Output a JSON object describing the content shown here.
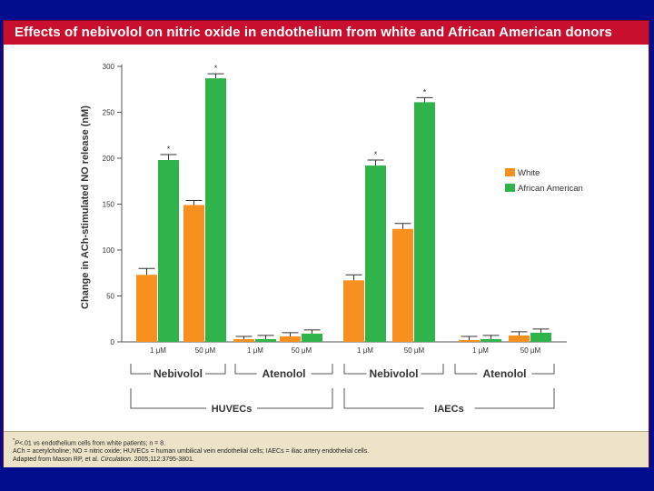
{
  "slide": {
    "title": "Effects of nebivolol on nitric oxide in endothelium from white and African American donors"
  },
  "colors": {
    "background": "#000d8c",
    "title_bar": "#c8102e",
    "white_series": "#f7901e",
    "african_american_series": "#2fb34a",
    "footer": "#ece3c8"
  },
  "chart_data": {
    "type": "bar",
    "title": "",
    "ylabel": "Change in ACh-stimulated NO release (nM)",
    "xlabel": "",
    "ylim": [
      0,
      300
    ],
    "yticks": [
      0,
      50,
      100,
      150,
      200,
      250,
      300
    ],
    "categories": [
      "1 μM",
      "50 μM",
      "1 μM",
      "50 μM",
      "1 μM",
      "50 μM",
      "1 μM",
      "50 μM"
    ],
    "series": [
      {
        "name": "White",
        "values": [
          73,
          149,
          3,
          6,
          67,
          123,
          2,
          7
        ],
        "errors": [
          7,
          5,
          3,
          4,
          6,
          6,
          4,
          4
        ]
      },
      {
        "name": "African American",
        "values": [
          198,
          287,
          3,
          9,
          192,
          261,
          3,
          10
        ],
        "errors": [
          6,
          5,
          4,
          4,
          6,
          5,
          4,
          4
        ],
        "significant": [
          true,
          true,
          false,
          false,
          true,
          true,
          false,
          false
        ]
      }
    ],
    "significance_marker": "*",
    "drug_groups": [
      "Nebivolol",
      "Atenolol",
      "Nebivolol",
      "Atenolol"
    ],
    "cell_groups": [
      "HUVECs",
      "IAECs"
    ],
    "legend": {
      "position": "right",
      "entries": [
        "White",
        "African American"
      ]
    }
  },
  "footer": {
    "line1_prefix": "*",
    "line1_p": "P",
    "line1_rest": "<.01 vs endothelium cells from white patients; n = 8.",
    "line2": "ACh = acetylcholine; NO = nitric oxide; HUVECs = human umbilical vein endothelial cells; IAECs = iliac artery endothelial cells.",
    "line3_prefix": "Adapted from Mason RP, et al.",
    "line3_journal": "Circulation",
    "line3_rest": ". 2005;112:3795-3801."
  }
}
